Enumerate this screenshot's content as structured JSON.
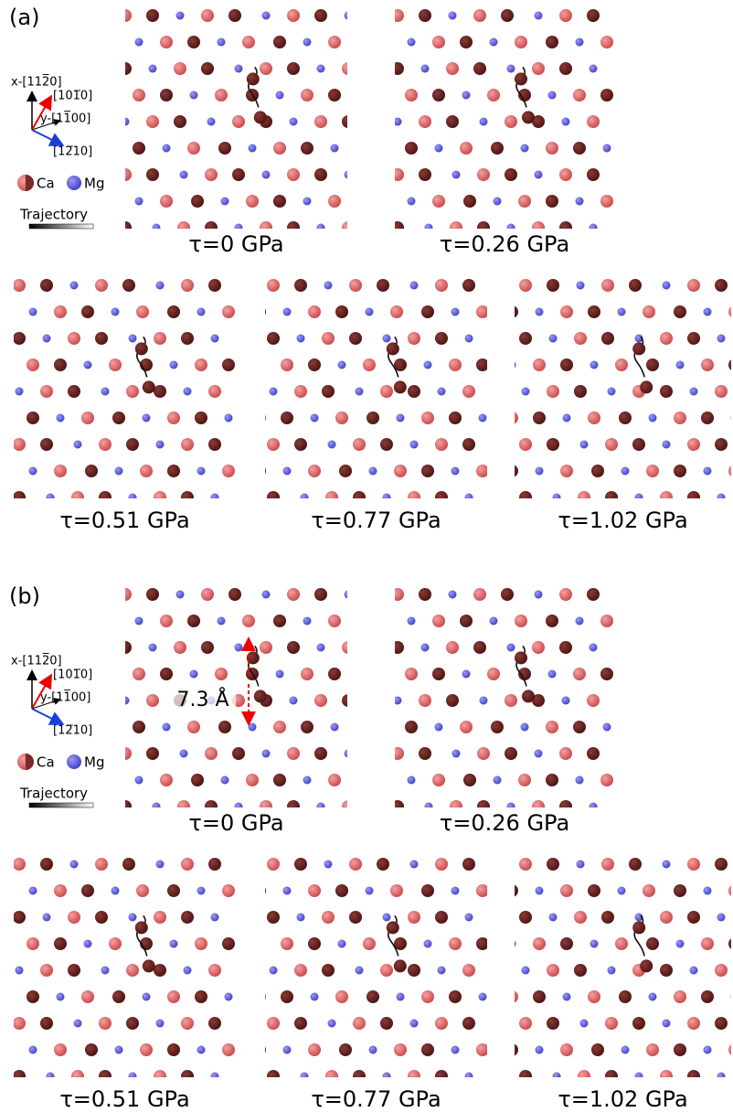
{
  "figure": {
    "parts": [
      {
        "label": "(a)",
        "axes": {
          "x": "x-[112̅0]",
          "a": "[101̅0]",
          "y": "y-[11̅00]",
          "b": "[12̅10]"
        },
        "legend": {
          "ca": "Ca",
          "mg": "Mg",
          "trajectory": "Trajectory"
        },
        "panels": [
          "τ=0 GPa",
          "τ=0.26 GPa",
          "τ=0.51 GPa",
          "τ=0.77 GPa",
          "τ=1.02 GPa"
        ]
      },
      {
        "label": "(b)",
        "axes": {
          "x": "x-[112̅0]",
          "a": "[101̅0]",
          "y": "y-[11̅00]",
          "b": "[12̅10]"
        },
        "legend": {
          "ca": "Ca",
          "mg": "Mg",
          "trajectory": "Trajectory"
        },
        "panels": [
          "τ=0 GPa",
          "τ=0.26 GPa",
          "τ=0.51 GPa",
          "τ=0.77 GPa",
          "τ=1.02 GPa"
        ],
        "annotation": "7.3 Å"
      }
    ]
  }
}
